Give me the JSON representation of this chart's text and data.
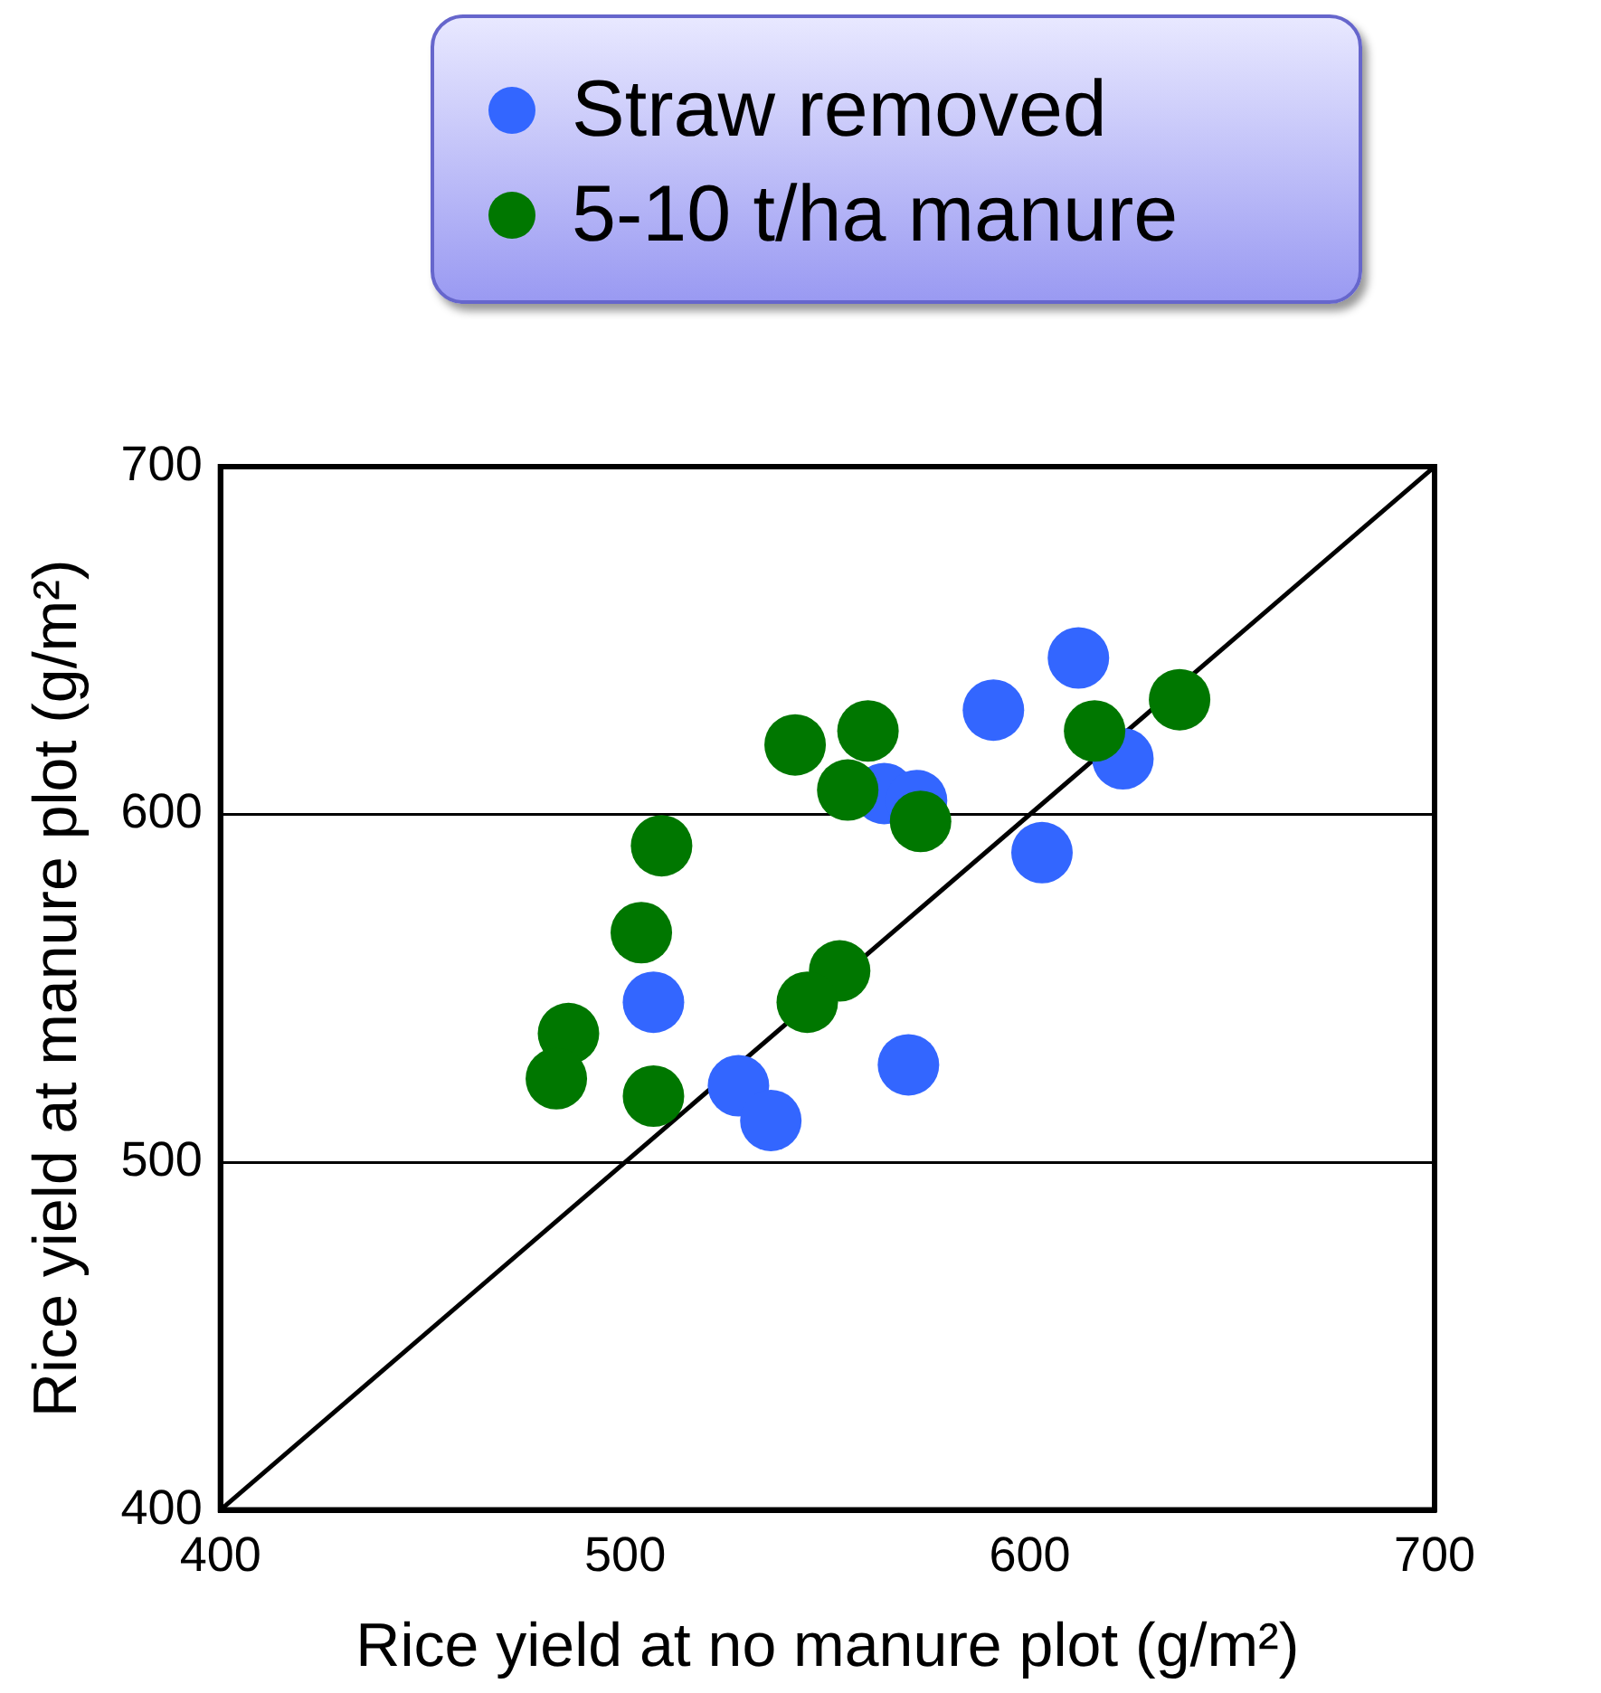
{
  "chart_data": {
    "type": "scatter",
    "xlabel": "Rice yield at no manure plot (g/m²)",
    "ylabel": "Rice yield at manure plot (g/m²)",
    "xlim": [
      400,
      700
    ],
    "ylim": [
      400,
      700
    ],
    "xticks": [
      400,
      500,
      600,
      700
    ],
    "yticks": [
      400,
      500,
      600,
      700
    ],
    "grid": "y",
    "legend": "top",
    "marker": "circle",
    "series": [
      {
        "name": "Straw removed",
        "color": "#3366ff",
        "x": [
          612,
          591,
          623,
          564,
          572,
          603,
          507,
          570,
          528,
          536
        ],
        "values": [
          645,
          630,
          616,
          606,
          604,
          589,
          546,
          528,
          522,
          512
        ]
      },
      {
        "name": "5-10 t/ha manure",
        "color": "#007700",
        "x": [
          637,
          616,
          542,
          560,
          555,
          573,
          509,
          504,
          553,
          545,
          486,
          483,
          507
        ],
        "values": [
          633,
          624,
          620,
          624,
          607,
          598,
          591,
          566,
          555,
          546,
          537,
          524,
          519
        ]
      },
      {
        "type": "line",
        "color": "#000000",
        "marker": "none",
        "line_style": "solid",
        "x": [
          400,
          700
        ],
        "values": [
          400,
          700
        ]
      }
    ]
  }
}
